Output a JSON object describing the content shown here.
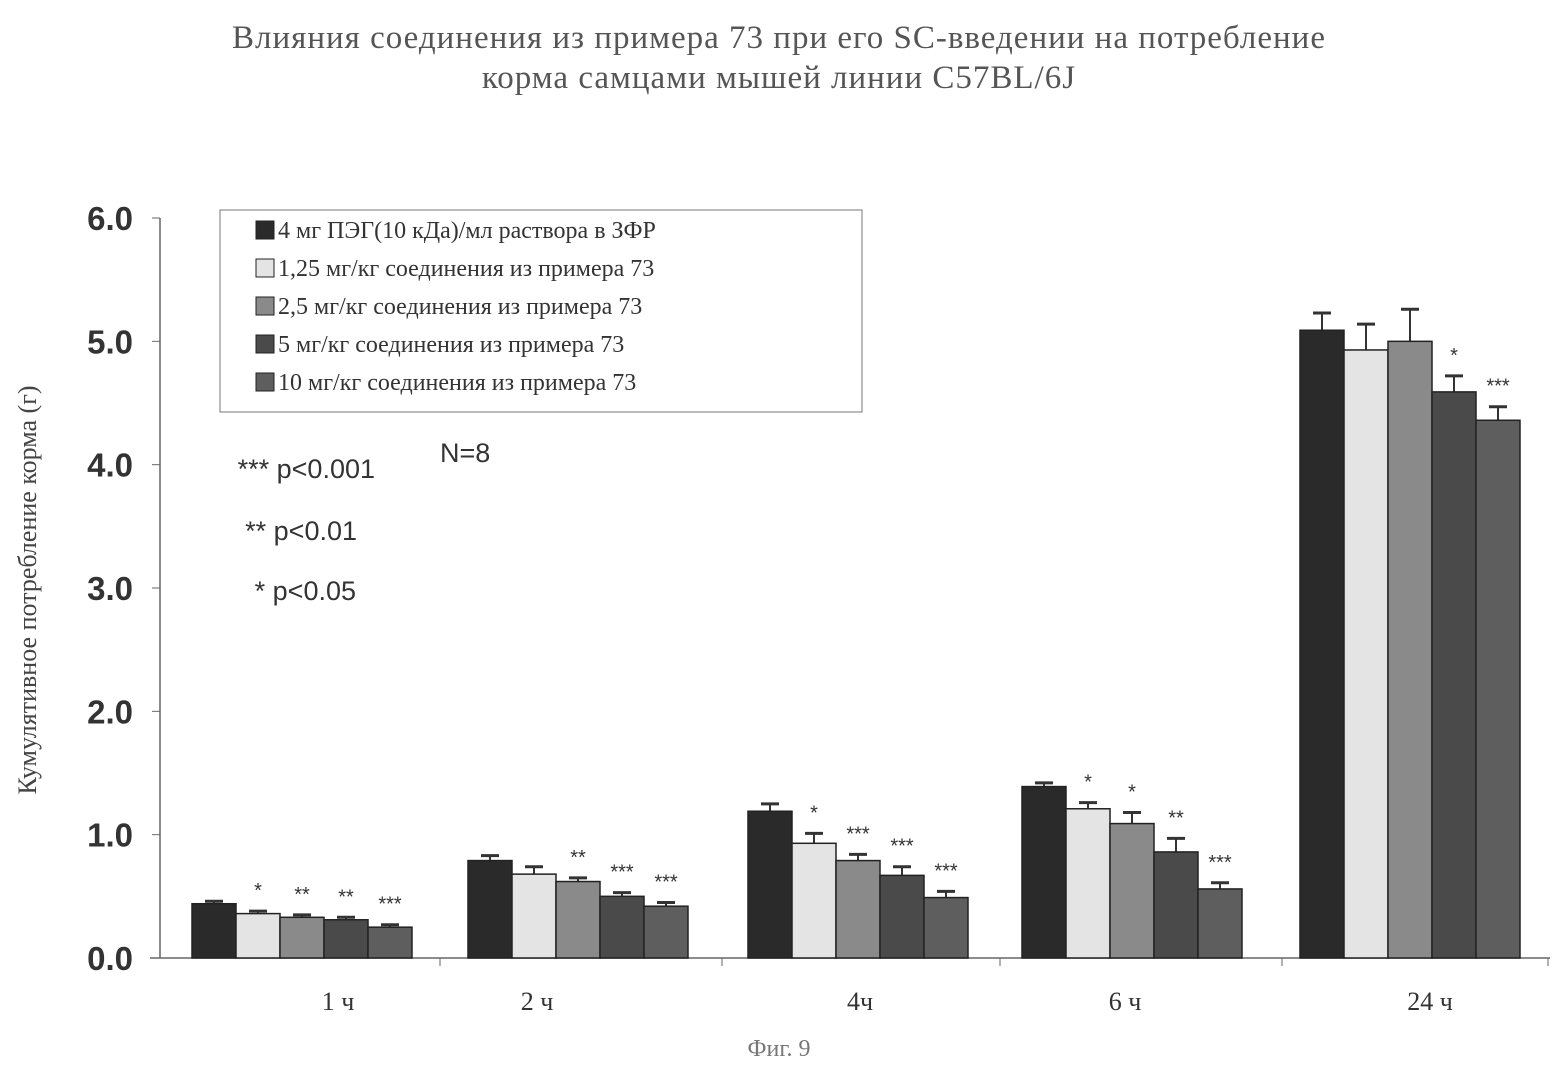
{
  "title_line1": "Влияния соединения из примера 73 при его SC-введении на потребление",
  "title_line2": "корма самцами мышей линии C57BL/6J",
  "figure_label": "Фиг. 9",
  "chart_data": {
    "type": "bar",
    "ylabel": "Кумулятивное потребление корма (г)",
    "ylim": [
      0,
      6
    ],
    "yticks": [
      "0.0",
      "1.0",
      "2.0",
      "3.0",
      "4.0",
      "5.0",
      "6.0"
    ],
    "categories": [
      "1 ч",
      "2 ч",
      "4ч",
      "6 ч",
      "24 ч"
    ],
    "series": [
      {
        "name": "4 мг ПЭГ(10 кДа)/мл раствора в ЗФР",
        "color": "#2a2a2a",
        "values": [
          0.44,
          0.79,
          1.19,
          1.39,
          5.09
        ],
        "errors": [
          0.02,
          0.04,
          0.06,
          0.03,
          0.14
        ],
        "sig": [
          "",
          "",
          "",
          "",
          ""
        ]
      },
      {
        "name": "1,25 мг/кг соединения из примера 73",
        "color": "#e4e4e4",
        "values": [
          0.36,
          0.68,
          0.93,
          1.21,
          4.93
        ],
        "errors": [
          0.02,
          0.06,
          0.08,
          0.05,
          0.21
        ],
        "sig": [
          "*",
          "",
          "*",
          "*",
          ""
        ]
      },
      {
        "name": "2,5 мг/кг соединения из примера 73",
        "color": "#8a8a8a",
        "values": [
          0.33,
          0.62,
          0.79,
          1.09,
          5.0
        ],
        "errors": [
          0.02,
          0.03,
          0.05,
          0.09,
          0.26
        ],
        "sig": [
          "**",
          "**",
          "***",
          "*",
          ""
        ]
      },
      {
        "name": "5 мг/кг соединения из примера 73",
        "color": "#4a4a4a",
        "values": [
          0.31,
          0.5,
          0.67,
          0.86,
          4.59
        ],
        "errors": [
          0.02,
          0.03,
          0.07,
          0.11,
          0.13
        ],
        "sig": [
          "**",
          "***",
          "***",
          "**",
          "*"
        ]
      },
      {
        "name": "10 мг/кг соединения из примера 73",
        "color": "#5e5e5e",
        "values": [
          0.25,
          0.42,
          0.49,
          0.56,
          4.36
        ],
        "errors": [
          0.02,
          0.03,
          0.05,
          0.05,
          0.11
        ],
        "sig": [
          "***",
          "***",
          "***",
          "***",
          "***"
        ]
      }
    ],
    "annotations": [
      "N=8",
      "*** p<0.001",
      "** p<0.01",
      "* p<0.05"
    ],
    "legend_position": "top-left",
    "grid": false
  }
}
